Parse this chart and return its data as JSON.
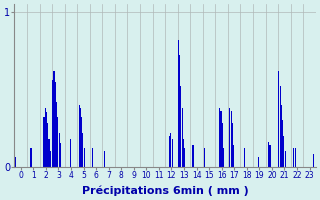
{
  "title": "",
  "xlabel": "Précipitations 6min ( mm )",
  "ylabel": "",
  "background_color": "#d8f0ee",
  "bar_color": "#0000cc",
  "grid_color": "#b0b8b8",
  "y_label_color": "#0000aa",
  "x_label_color": "#0000aa",
  "ylim": [
    0,
    1.05
  ],
  "yticks": [
    0,
    1
  ],
  "figsize": [
    3.2,
    2.0
  ],
  "dpi": 100,
  "n_per_hour": 10,
  "hours": [
    0,
    1,
    2,
    3,
    4,
    5,
    6,
    7,
    8,
    9,
    10,
    11,
    12,
    13,
    14,
    15,
    16,
    17,
    18,
    19,
    20,
    21,
    22,
    23
  ],
  "values": [
    [
      0.06,
      0.0,
      0.0,
      0.0,
      0.0,
      0.0,
      0.0,
      0.0,
      0.0,
      0.0
    ],
    [
      0.0,
      0.0,
      0.12,
      0.12,
      0.0,
      0.0,
      0.0,
      0.0,
      0.0,
      0.0
    ],
    [
      0.0,
      0.0,
      0.0,
      0.32,
      0.38,
      0.35,
      0.28,
      0.18,
      0.1,
      0.0
    ],
    [
      0.56,
      0.62,
      0.55,
      0.42,
      0.32,
      0.22,
      0.15,
      0.0,
      0.0,
      0.0
    ],
    [
      0.0,
      0.0,
      0.0,
      0.0,
      0.18,
      0.0,
      0.0,
      0.0,
      0.0,
      0.0
    ],
    [
      0.0,
      0.4,
      0.38,
      0.32,
      0.22,
      0.12,
      0.0,
      0.0,
      0.0,
      0.0
    ],
    [
      0.0,
      0.0,
      0.12,
      0.0,
      0.0,
      0.0,
      0.0,
      0.0,
      0.0,
      0.0
    ],
    [
      0.0,
      0.1,
      0.0,
      0.0,
      0.0,
      0.0,
      0.0,
      0.0,
      0.0,
      0.0
    ],
    [
      0.0,
      0.0,
      0.0,
      0.0,
      0.0,
      0.0,
      0.0,
      0.0,
      0.0,
      0.0
    ],
    [
      0.0,
      0.0,
      0.0,
      0.0,
      0.0,
      0.0,
      0.0,
      0.0,
      0.0,
      0.0
    ],
    [
      0.0,
      0.0,
      0.0,
      0.0,
      0.0,
      0.0,
      0.0,
      0.0,
      0.0,
      0.0
    ],
    [
      0.0,
      0.0,
      0.0,
      0.0,
      0.0,
      0.0,
      0.0,
      0.0,
      0.0,
      0.0
    ],
    [
      0.0,
      0.0,
      0.0,
      0.2,
      0.22,
      0.18,
      0.0,
      0.0,
      0.0,
      0.0
    ],
    [
      0.82,
      0.72,
      0.52,
      0.38,
      0.18,
      0.12,
      0.0,
      0.0,
      0.0,
      0.0
    ],
    [
      0.0,
      0.14,
      0.14,
      0.0,
      0.0,
      0.0,
      0.0,
      0.0,
      0.0,
      0.0
    ],
    [
      0.0,
      0.12,
      0.0,
      0.0,
      0.0,
      0.0,
      0.0,
      0.0,
      0.0,
      0.0
    ],
    [
      0.0,
      0.0,
      0.0,
      0.38,
      0.36,
      0.28,
      0.12,
      0.0,
      0.0,
      0.0
    ],
    [
      0.0,
      0.38,
      0.36,
      0.28,
      0.14,
      0.0,
      0.0,
      0.0,
      0.0,
      0.0
    ],
    [
      0.0,
      0.0,
      0.0,
      0.12,
      0.0,
      0.0,
      0.0,
      0.0,
      0.0,
      0.0
    ],
    [
      0.0,
      0.0,
      0.0,
      0.0,
      0.06,
      0.0,
      0.0,
      0.0,
      0.0,
      0.0
    ],
    [
      0.0,
      0.0,
      0.16,
      0.14,
      0.0,
      0.0,
      0.0,
      0.0,
      0.0,
      0.0
    ],
    [
      0.62,
      0.52,
      0.4,
      0.3,
      0.2,
      0.1,
      0.0,
      0.0,
      0.0,
      0.0
    ],
    [
      0.0,
      0.0,
      0.12,
      0.12,
      0.0,
      0.0,
      0.0,
      0.0,
      0.0,
      0.0
    ],
    [
      0.0,
      0.0,
      0.0,
      0.0,
      0.0,
      0.0,
      0.0,
      0.0,
      0.08,
      0.0
    ]
  ]
}
